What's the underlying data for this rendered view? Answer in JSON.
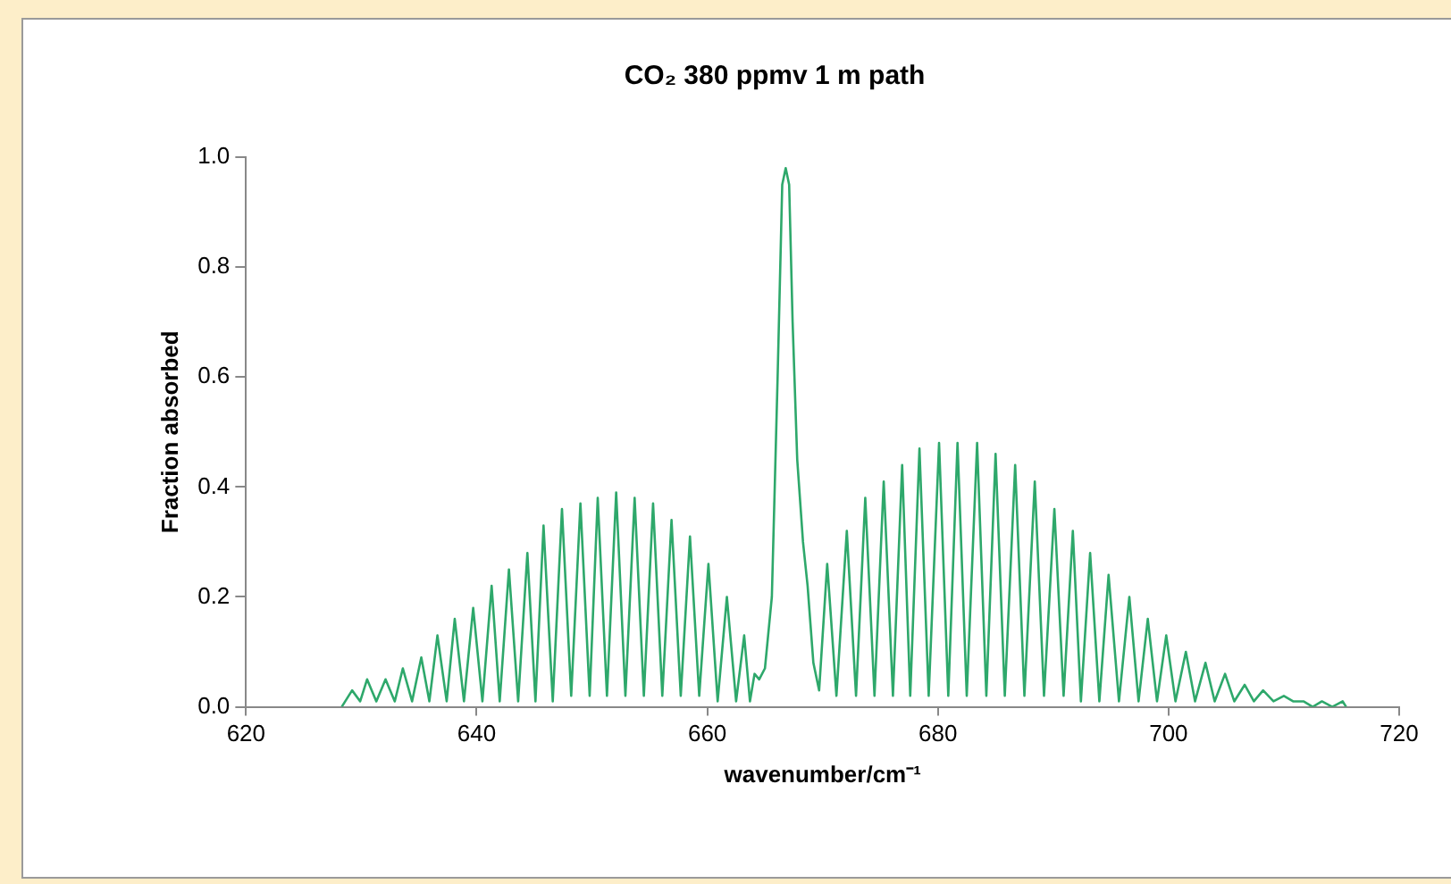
{
  "chart_data": {
    "type": "line",
    "title": "CO₂ 380 ppmv 1 m path",
    "xlabel": "wavenumber/cm⁻¹",
    "ylabel": "Fraction absorbed",
    "color": "#2ea86b",
    "marker": "none",
    "grid": false,
    "legend": false,
    "xlim": [
      620,
      720
    ],
    "xticks": [
      620,
      640,
      660,
      680,
      700,
      720
    ],
    "ylim": [
      0,
      1
    ],
    "yticks": [
      {
        "value": 0,
        "label": "0.0"
      },
      {
        "value": 0.2,
        "label": "0.2"
      },
      {
        "value": 0.4,
        "label": "0.4"
      },
      {
        "value": 0.6,
        "label": "0.6"
      },
      {
        "value": 0.8,
        "label": "0.8"
      },
      {
        "value": 1,
        "label": "1.0"
      }
    ],
    "x": [
      628.3,
      629.2,
      629.9,
      630.5,
      631.3,
      632.1,
      632.9,
      633.6,
      634.4,
      635.2,
      635.9,
      636.6,
      637.4,
      638.1,
      638.9,
      639.7,
      640.5,
      641.3,
      642.0,
      642.8,
      643.6,
      644.4,
      645.1,
      645.8,
      646.6,
      647.4,
      648.2,
      649.0,
      649.8,
      650.5,
      651.3,
      652.1,
      652.9,
      653.7,
      654.5,
      655.3,
      656.1,
      656.9,
      657.7,
      658.5,
      659.3,
      660.1,
      660.9,
      661.7,
      662.5,
      663.2,
      663.7,
      664.1,
      664.5,
      665.0,
      665.6,
      666.1,
      666.5,
      666.8,
      667.1,
      667.4,
      667.8,
      668.3,
      668.7,
      669.2,
      669.7,
      670.4,
      671.2,
      672.1,
      672.9,
      673.7,
      674.5,
      675.3,
      676.1,
      676.9,
      677.6,
      678.4,
      679.2,
      680.1,
      680.9,
      681.7,
      682.5,
      683.4,
      684.2,
      685.0,
      685.8,
      686.7,
      687.5,
      688.4,
      689.2,
      690.1,
      690.9,
      691.7,
      692.4,
      693.2,
      694.0,
      694.8,
      695.7,
      696.6,
      697.4,
      698.2,
      699.0,
      699.8,
      700.6,
      701.5,
      702.3,
      703.2,
      704.0,
      704.9,
      705.7,
      706.6,
      707.4,
      708.2,
      709.1,
      710.0,
      710.8,
      711.7,
      712.5,
      713.3,
      714.2,
      715.1,
      715.4
    ],
    "values": [
      0,
      0.03,
      0.01,
      0.05,
      0.01,
      0.05,
      0.01,
      0.07,
      0.01,
      0.09,
      0.01,
      0.13,
      0.01,
      0.16,
      0.01,
      0.18,
      0.01,
      0.22,
      0.01,
      0.25,
      0.01,
      0.28,
      0.01,
      0.33,
      0.01,
      0.36,
      0.02,
      0.37,
      0.02,
      0.38,
      0.02,
      0.39,
      0.02,
      0.38,
      0.02,
      0.37,
      0.02,
      0.34,
      0.02,
      0.31,
      0.02,
      0.26,
      0.01,
      0.2,
      0.01,
      0.13,
      0.01,
      0.06,
      0.05,
      0.07,
      0.2,
      0.6,
      0.95,
      0.98,
      0.95,
      0.7,
      0.45,
      0.3,
      0.22,
      0.08,
      0.03,
      0.26,
      0.02,
      0.32,
      0.02,
      0.38,
      0.02,
      0.41,
      0.02,
      0.44,
      0.02,
      0.47,
      0.02,
      0.48,
      0.02,
      0.48,
      0.02,
      0.48,
      0.02,
      0.46,
      0.02,
      0.44,
      0.02,
      0.41,
      0.02,
      0.36,
      0.02,
      0.32,
      0.01,
      0.28,
      0.01,
      0.24,
      0.01,
      0.2,
      0.01,
      0.16,
      0.01,
      0.13,
      0.01,
      0.1,
      0.01,
      0.08,
      0.01,
      0.06,
      0.01,
      0.04,
      0.01,
      0.03,
      0.01,
      0.02,
      0.01,
      0.01,
      0,
      0.01,
      0,
      0.01,
      0
    ]
  }
}
